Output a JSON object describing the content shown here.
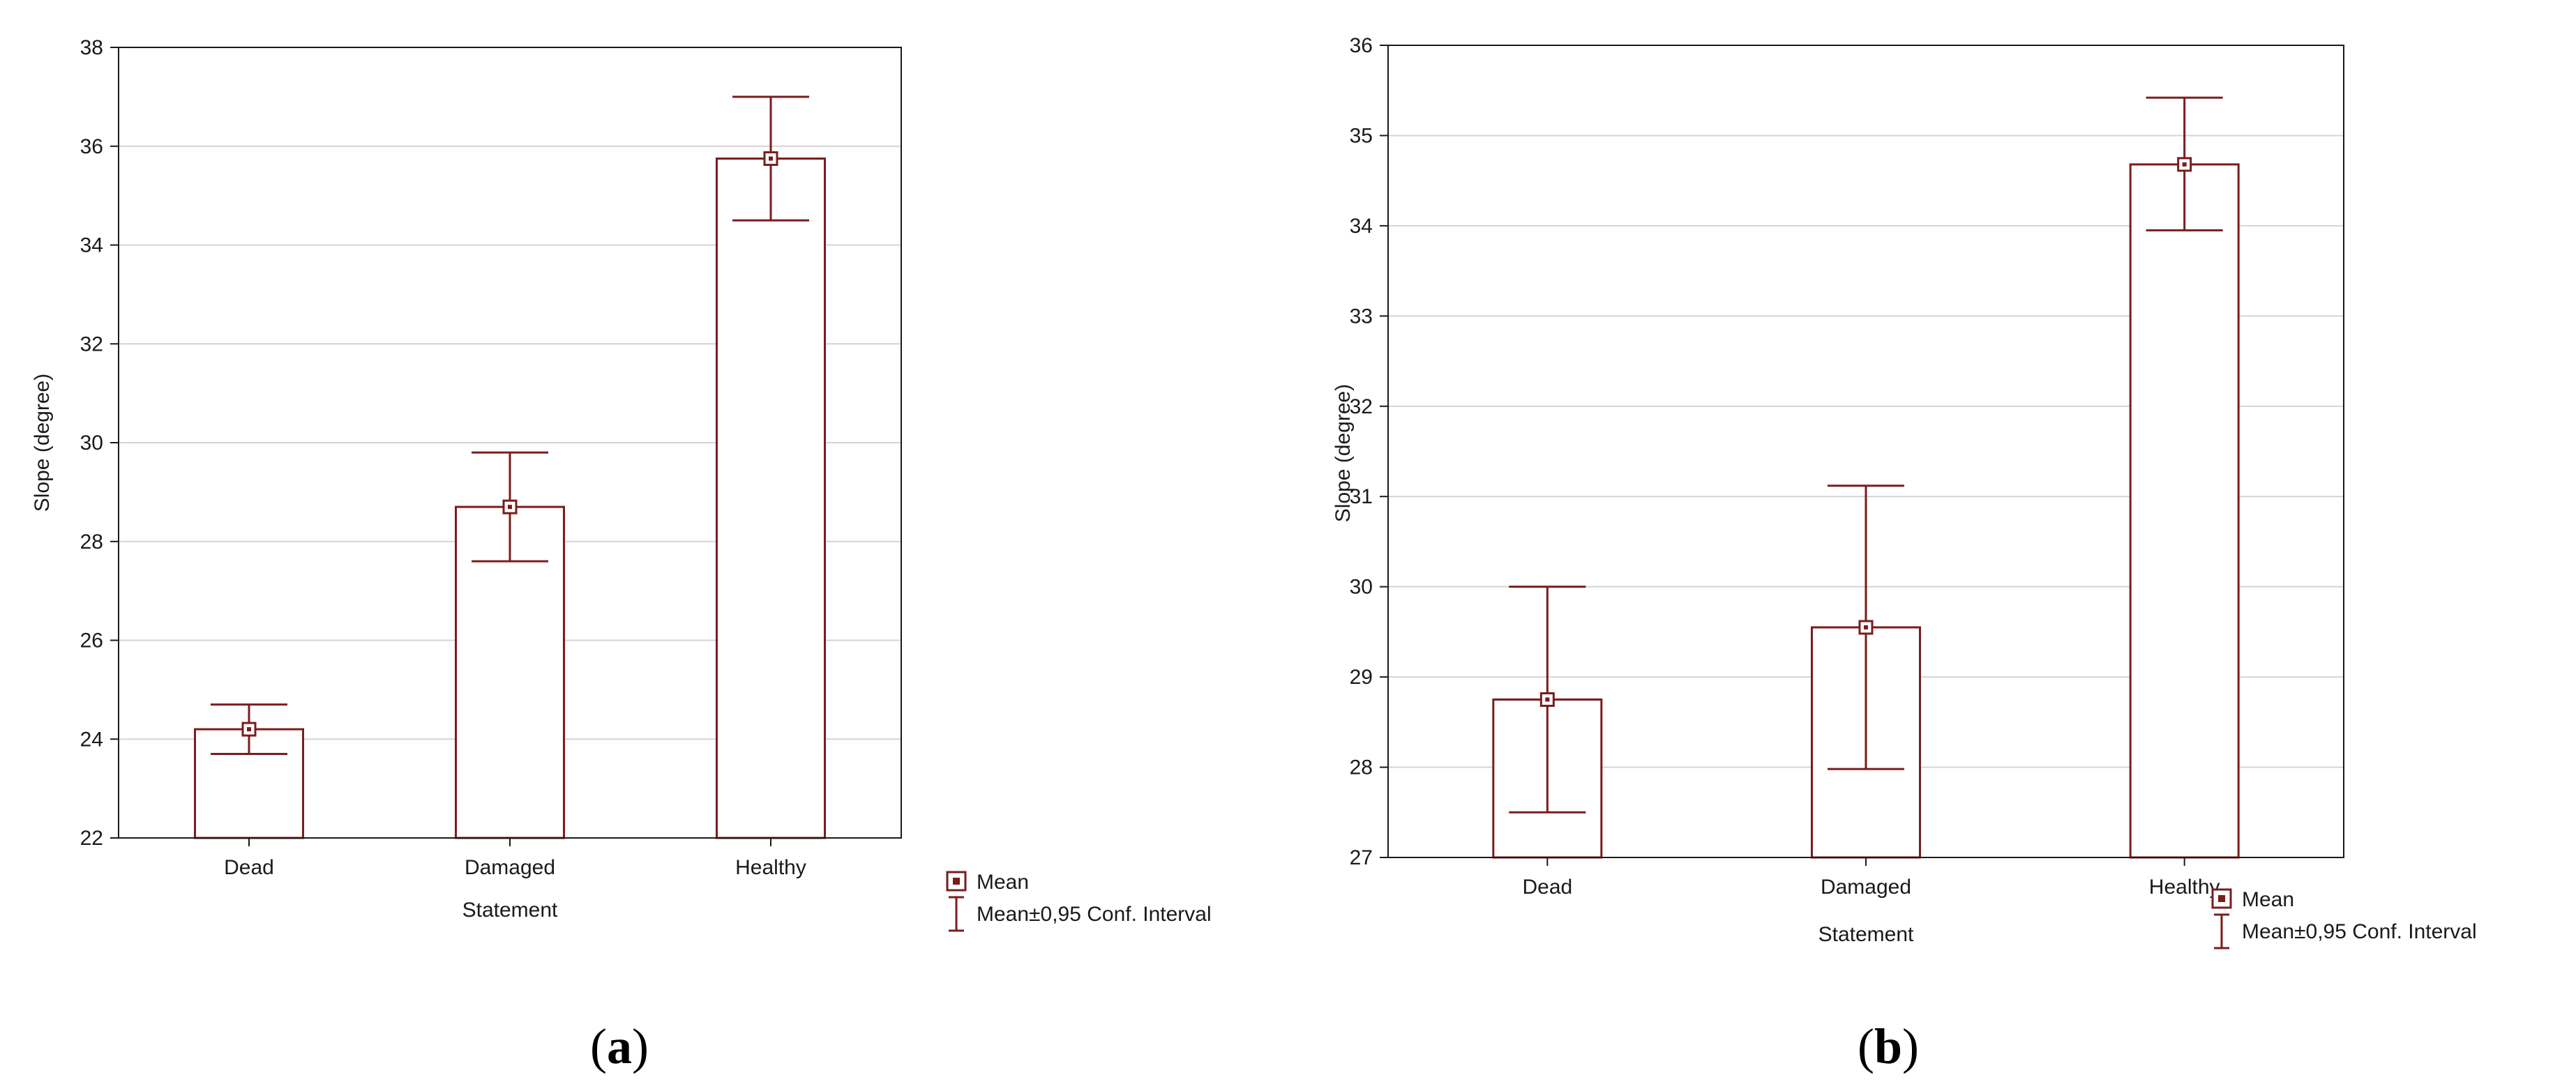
{
  "colors": {
    "mark": "#7a1d1d",
    "grid": "#d4d4d4",
    "axis": "#1a1a1a",
    "background": "#ffffff"
  },
  "chart_data": [
    {
      "type": "bar",
      "panel_label": "(a)",
      "panel_letter": "a",
      "categories": [
        "Dead",
        "Damaged",
        "Healthy"
      ],
      "values": [
        24.2,
        28.7,
        35.75
      ],
      "ci_lower": [
        23.7,
        27.6,
        34.5
      ],
      "ci_upper": [
        24.7,
        29.8,
        37.0
      ],
      "xlabel": "Statement",
      "ylabel": "Slope (degree)",
      "ylim": [
        22,
        38
      ],
      "yticks": [
        22,
        24,
        26,
        28,
        30,
        32,
        34,
        36,
        38
      ],
      "grid": true,
      "legend": {
        "position": "bottom-right",
        "mean": "Mean",
        "ci": "Mean±0,95 Conf. Interval"
      }
    },
    {
      "type": "bar",
      "panel_label": "(b)",
      "panel_letter": "b",
      "categories": [
        "Dead",
        "Damaged",
        "Healthy"
      ],
      "values": [
        28.75,
        29.55,
        34.68
      ],
      "ci_lower": [
        27.5,
        27.98,
        33.95
      ],
      "ci_upper": [
        30.0,
        31.12,
        35.42
      ],
      "xlabel": "Statement",
      "ylabel": "Slope (degree)",
      "ylim": [
        27,
        36
      ],
      "yticks": [
        27,
        28,
        29,
        30,
        31,
        32,
        33,
        34,
        35,
        36
      ],
      "grid": true,
      "legend": {
        "position": "bottom-right",
        "mean": "Mean",
        "ci": "Mean±0,95 Conf. Interval"
      }
    }
  ]
}
